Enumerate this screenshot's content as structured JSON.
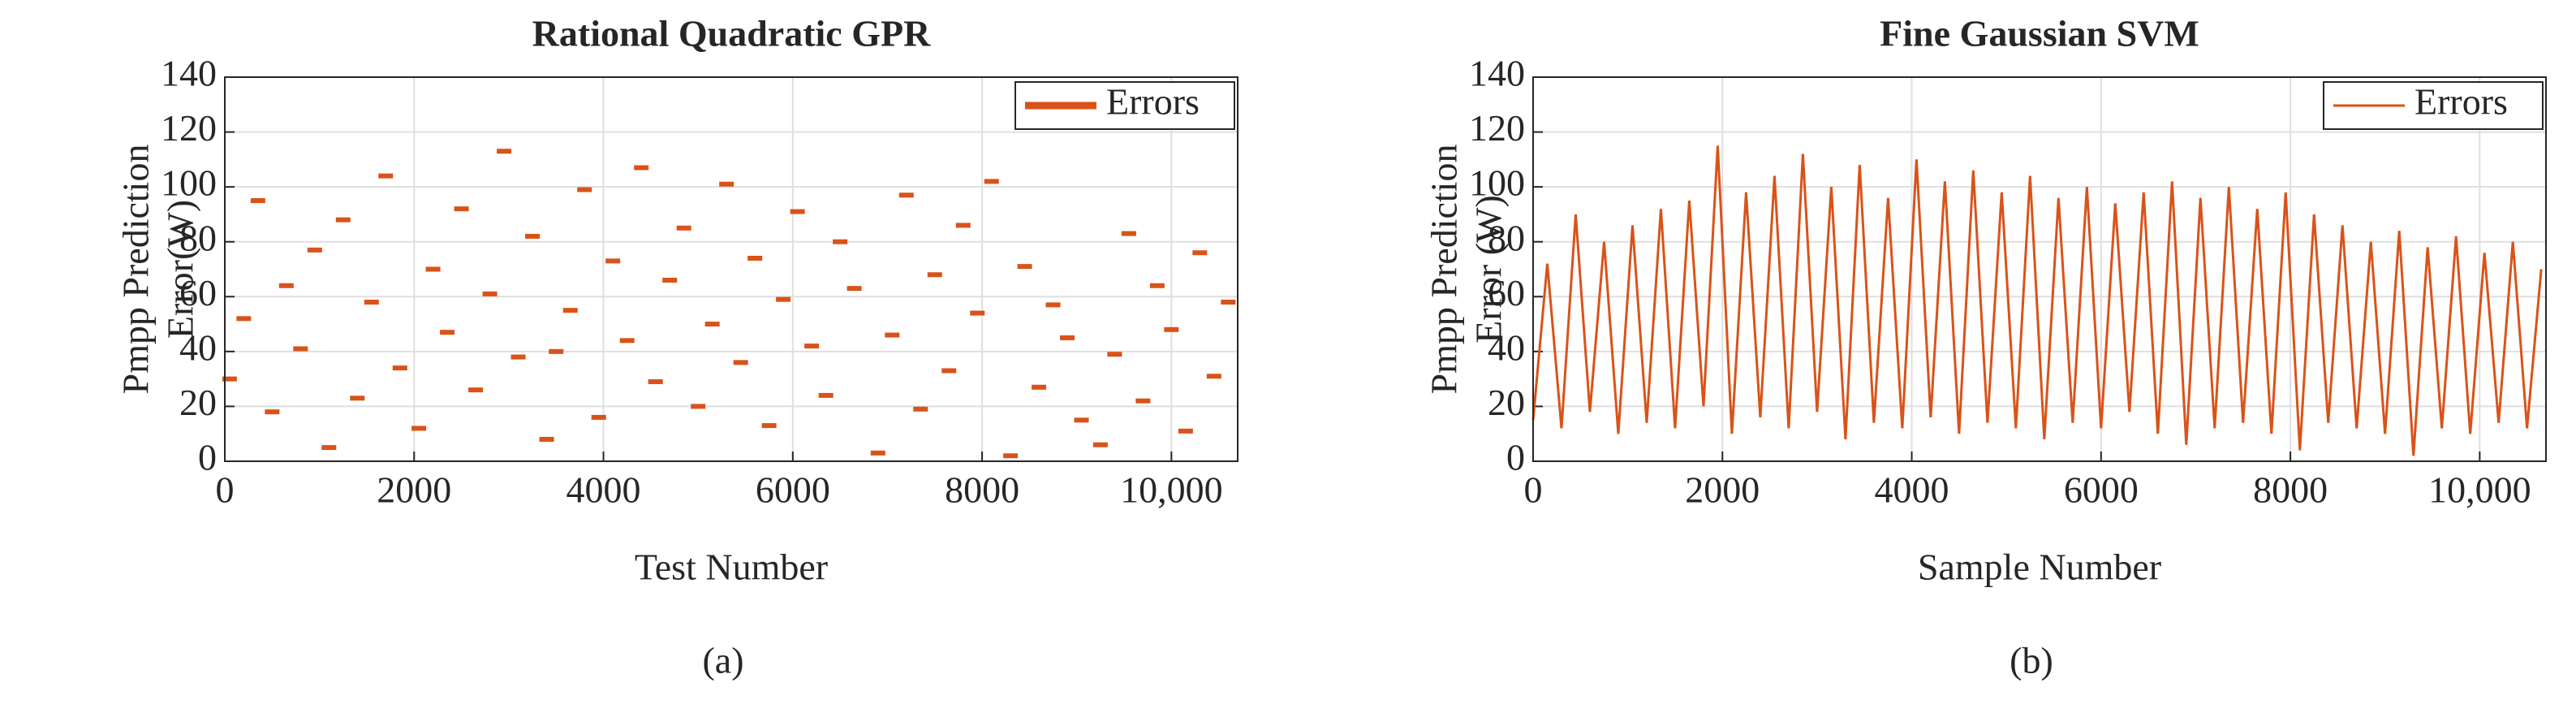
{
  "chart_data": [
    {
      "type": "scatter",
      "title": "Rational Quadratic GPR",
      "xlabel": "Test Number",
      "ylabel": [
        "Pmpp Prediction",
        "Error(W)"
      ],
      "caption": "(a)",
      "xlim": [
        0,
        10700
      ],
      "ylim": [
        0,
        140
      ],
      "xticks": [
        0,
        2000,
        4000,
        6000,
        8000,
        {
          "value": 10000,
          "label": "10,000"
        }
      ],
      "yticks": [
        0,
        20,
        40,
        60,
        80,
        100,
        120,
        140
      ],
      "grid": true,
      "legend": "upper-right",
      "x": [
        50,
        200,
        350,
        500,
        650,
        800,
        950,
        1100,
        1250,
        1400,
        1550,
        1700,
        1850,
        2050,
        2200,
        2350,
        2500,
        2650,
        2800,
        2950,
        3100,
        3250,
        3400,
        3500,
        3650,
        3800,
        3950,
        4100,
        4250,
        4400,
        4550,
        4700,
        4850,
        5000,
        5150,
        5300,
        5450,
        5600,
        5750,
        5900,
        6050,
        6200,
        6350,
        6500,
        6650,
        6900,
        7050,
        7200,
        7350,
        7500,
        7650,
        7800,
        7950,
        8100,
        8300,
        8450,
        8600,
        8750,
        8900,
        9050,
        9250,
        9400,
        9550,
        9700,
        9850,
        10000,
        10150,
        10300,
        10450,
        10600
      ],
      "series": [
        {
          "name": "Errors",
          "color": "#d95319",
          "values": [
            30,
            52,
            95,
            18,
            64,
            41,
            77,
            5,
            88,
            23,
            58,
            104,
            34,
            12,
            70,
            47,
            92,
            26,
            61,
            113,
            38,
            82,
            8,
            40,
            55,
            99,
            16,
            73,
            44,
            107,
            29,
            66,
            85,
            20,
            50,
            101,
            36,
            74,
            13,
            59,
            91,
            42,
            24,
            80,
            63,
            3,
            46,
            97,
            19,
            68,
            33,
            86,
            54,
            102,
            2,
            71,
            27,
            57,
            45,
            15,
            6,
            39,
            83,
            22,
            64,
            48,
            11,
            76,
            31,
            58
          ]
        }
      ]
    },
    {
      "type": "line",
      "title": "Fine Gaussian SVM",
      "xlabel": "Sample Number",
      "ylabel": [
        "Pmpp Prediction",
        "Error (W)"
      ],
      "caption": "(b)",
      "xlim": [
        0,
        10700
      ],
      "ylim": [
        0,
        140
      ],
      "xticks": [
        0,
        2000,
        4000,
        6000,
        8000,
        {
          "value": 10000,
          "label": "10,000"
        }
      ],
      "yticks": [
        0,
        20,
        40,
        60,
        80,
        100,
        120,
        140
      ],
      "grid": true,
      "legend": "upper-right",
      "x": [
        0,
        150,
        300,
        450,
        600,
        750,
        900,
        1050,
        1200,
        1350,
        1500,
        1650,
        1800,
        1950,
        2100,
        2250,
        2400,
        2550,
        2700,
        2850,
        3000,
        3150,
        3300,
        3450,
        3600,
        3750,
        3900,
        4050,
        4200,
        4350,
        4500,
        4650,
        4800,
        4950,
        5100,
        5250,
        5400,
        5550,
        5700,
        5850,
        6000,
        6150,
        6300,
        6450,
        6600,
        6750,
        6900,
        7050,
        7200,
        7350,
        7500,
        7650,
        7800,
        7950,
        8100,
        8250,
        8400,
        8550,
        8700,
        8850,
        9000,
        9150,
        9300,
        9450,
        9600,
        9750,
        9900,
        10050,
        10200,
        10350,
        10500,
        10650
      ],
      "series": [
        {
          "name": "Errors",
          "color": "#d95319",
          "values": [
            15,
            72,
            12,
            90,
            18,
            80,
            10,
            86,
            14,
            92,
            12,
            95,
            20,
            115,
            10,
            98,
            16,
            104,
            12,
            112,
            18,
            100,
            8,
            108,
            14,
            96,
            12,
            110,
            16,
            102,
            10,
            106,
            14,
            98,
            12,
            104,
            8,
            96,
            14,
            100,
            12,
            94,
            18,
            98,
            10,
            102,
            6,
            96,
            12,
            100,
            14,
            92,
            10,
            98,
            4,
            90,
            14,
            86,
            12,
            80,
            10,
            84,
            2,
            78,
            12,
            82,
            10,
            76,
            14,
            80,
            12,
            70
          ]
        }
      ]
    }
  ]
}
